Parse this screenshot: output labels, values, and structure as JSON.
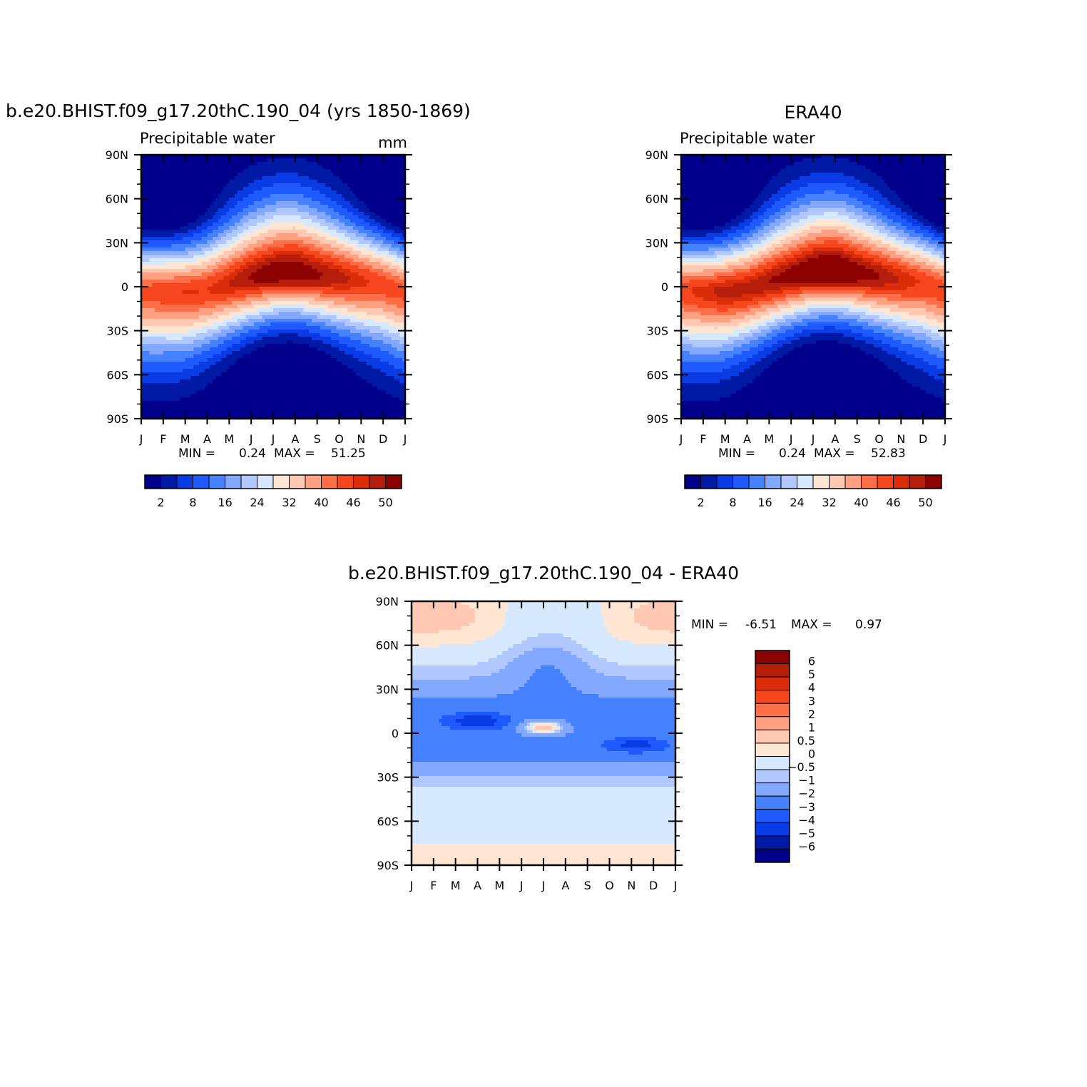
{
  "months": [
    "J",
    "F",
    "M",
    "A",
    "M",
    "J",
    "J",
    "A",
    "S",
    "O",
    "N",
    "D",
    "J"
  ],
  "lat_ticks": [
    "90N",
    "60N",
    "30N",
    "0",
    "30S",
    "60S",
    "90S"
  ],
  "panels": [
    {
      "title": "b.e20.BHIST.f09_g17.20thC.190_04 (yrs 1850-1869)",
      "subtitle": "Precipitable water",
      "units": "mm",
      "min_label": "MIN =",
      "min_value": "0.24",
      "max_label": "MAX =",
      "max_value": "51.25",
      "itcz_lat": [
        -3,
        -3,
        -4,
        -2,
        2,
        6,
        9,
        10,
        8,
        6,
        4,
        2,
        -3
      ],
      "itcz_peak": [
        44,
        45,
        46,
        46,
        48,
        50,
        51,
        51,
        50,
        49,
        47,
        45,
        44
      ]
    },
    {
      "title": "ERA40",
      "subtitle": "Precipitable water",
      "min_label": "MIN =",
      "min_value": "0.24",
      "max_label": "MAX =",
      "max_value": "52.83",
      "itcz_lat": [
        -2,
        -3,
        -3,
        -1,
        3,
        7,
        10,
        11,
        9,
        7,
        5,
        3,
        -2
      ],
      "itcz_peak": [
        45,
        47,
        49,
        49,
        50,
        51,
        52,
        53,
        51,
        50,
        48,
        46,
        45
      ]
    }
  ],
  "colorbar": {
    "labels": [
      "2",
      "8",
      "16",
      "24",
      "32",
      "40",
      "46",
      "50"
    ],
    "colors": [
      "#00008c",
      "#001aa6",
      "#0a3ce6",
      "#1e5aff",
      "#4682ff",
      "#82a8ff",
      "#b0c8ff",
      "#d7e9ff",
      "#ffe6d2",
      "#ffc8b2",
      "#ffa080",
      "#ff6e46",
      "#f5461e",
      "#dc2d0a",
      "#b41e0a",
      "#8c0000"
    ]
  },
  "diff_panel": {
    "title": "b.e20.BHIST.f09_g17.20thC.190_04 - ERA40",
    "min_label": "MIN =",
    "min_value": "-6.51",
    "max_label": "MAX =",
    "max_value": "0.97",
    "colorbar_labels": [
      "6",
      "5",
      "4",
      "3",
      "2",
      "1",
      "0.5",
      "0",
      "-0.5",
      "-1",
      "-2",
      "-3",
      "-4",
      "-5",
      "-6"
    ],
    "colorbar_colors": [
      "#8c0000",
      "#b41e0a",
      "#dc2d0a",
      "#f5461e",
      "#ff6e46",
      "#ffa080",
      "#ffc8b2",
      "#ffe6d2",
      "#d7e9ff",
      "#b0c8ff",
      "#82a8ff",
      "#4682ff",
      "#1e5aff",
      "#0a3ce6",
      "#001aa6",
      "#00008c"
    ]
  },
  "chart_data": [
    {
      "type": "heatmap",
      "title": "b.e20.BHIST.f09_g17.20thC.190_04 (yrs 1850-1869)",
      "subtitle": "Precipitable water",
      "units": "mm",
      "x": [
        "J",
        "F",
        "M",
        "A",
        "M",
        "J",
        "J",
        "A",
        "S",
        "O",
        "N",
        "D",
        "J"
      ],
      "y": [
        "90N",
        "60N",
        "30N",
        "0",
        "30S",
        "60S",
        "90S"
      ],
      "min": 0.24,
      "max": 51.25,
      "levels": [
        2,
        5,
        8,
        12,
        16,
        20,
        24,
        28,
        32,
        36,
        40,
        43,
        46,
        48,
        50
      ]
    },
    {
      "type": "heatmap",
      "title": "ERA40",
      "subtitle": "Precipitable water",
      "x": [
        "J",
        "F",
        "M",
        "A",
        "M",
        "J",
        "J",
        "A",
        "S",
        "O",
        "N",
        "D",
        "J"
      ],
      "y": [
        "90N",
        "60N",
        "30N",
        "0",
        "30S",
        "60S",
        "90S"
      ],
      "min": 0.24,
      "max": 52.83,
      "levels": [
        2,
        5,
        8,
        12,
        16,
        20,
        24,
        28,
        32,
        36,
        40,
        43,
        46,
        48,
        50
      ]
    },
    {
      "type": "heatmap",
      "title": "b.e20.BHIST.f09_g17.20thC.190_04 - ERA40",
      "x": [
        "J",
        "F",
        "M",
        "A",
        "M",
        "J",
        "J",
        "A",
        "S",
        "O",
        "N",
        "D",
        "J"
      ],
      "y": [
        "90N",
        "60N",
        "30N",
        "0",
        "30S",
        "60S",
        "90S"
      ],
      "min": -6.51,
      "max": 0.97,
      "levels": [
        -6,
        -5,
        -4,
        -3,
        -2,
        -1,
        -0.5,
        0,
        0.5,
        1,
        2,
        3,
        4,
        5,
        6
      ]
    }
  ]
}
